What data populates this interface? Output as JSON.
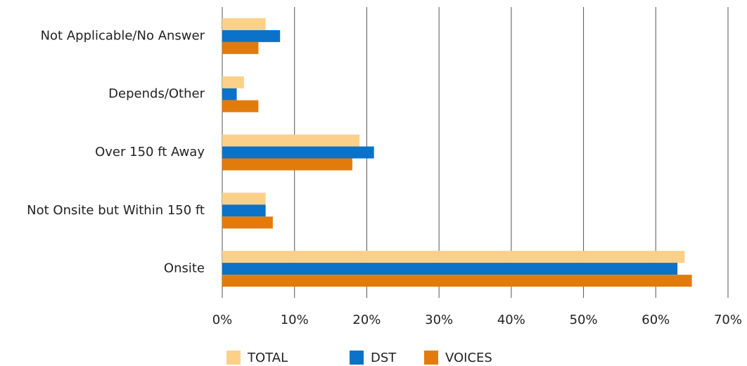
{
  "chart_data": {
    "type": "bar",
    "orientation": "horizontal",
    "categories": [
      "Not Applicable/No Answer",
      "Depends/Other",
      "Over 150 ft Away",
      "Not Onsite but Within 150 ft",
      "Onsite"
    ],
    "series": [
      {
        "name": "TOTAL",
        "color": "#fdd08a",
        "values": [
          6,
          3,
          19,
          6,
          64
        ]
      },
      {
        "name": "DST",
        "color": "#0a72c9",
        "values": [
          8,
          2,
          21,
          6,
          63
        ]
      },
      {
        "name": "VOICES",
        "color": "#e37b0c",
        "values": [
          5,
          5,
          18,
          7,
          65
        ]
      }
    ],
    "xlim": [
      0,
      70
    ],
    "xticks": [
      {
        "value": 0,
        "label": "0%"
      },
      {
        "value": 10,
        "label": "10%"
      },
      {
        "value": 20,
        "label": "20%"
      },
      {
        "value": 30,
        "label": "30%"
      },
      {
        "value": 40,
        "label": "40%"
      },
      {
        "value": 50,
        "label": "50%"
      },
      {
        "value": 60,
        "label": "60%"
      },
      {
        "value": 70,
        "label": "70%"
      }
    ],
    "grid": true,
    "legend": "bottom"
  }
}
